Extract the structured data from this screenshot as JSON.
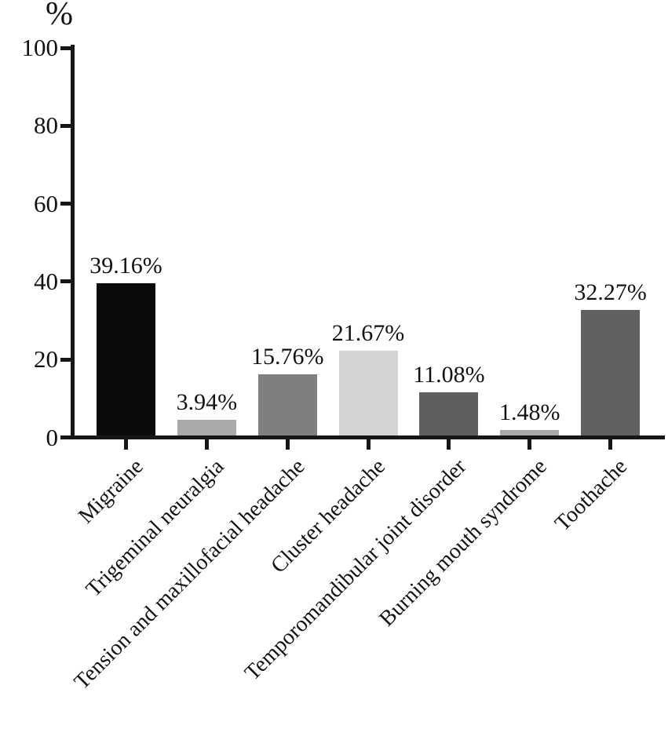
{
  "chart_data": {
    "type": "bar",
    "title": "",
    "xlabel": "",
    "ylabel": "%",
    "categories": [
      "Migraine",
      "Trigeminal neuralgia",
      "Tension and maxillofacial headache",
      "Cluster headache",
      "Temporomandibular joint disorder",
      "Burning mouth syndrome",
      "Toothache"
    ],
    "values": [
      39.16,
      3.94,
      15.76,
      21.67,
      11.08,
      1.48,
      32.27
    ],
    "value_labels": [
      "39.16%",
      "3.94%",
      "15.76%",
      "21.67%",
      "11.08%",
      "1.48%",
      "32.27%"
    ],
    "bar_colors": [
      "#0a0a0a",
      "#a9a9a9",
      "#7f7f7f",
      "#d3d3d3",
      "#5f5f5f",
      "#a9a9a9",
      "#616161"
    ],
    "y_ticks": [
      0,
      20,
      40,
      60,
      80,
      100
    ],
    "ylim": [
      0,
      100
    ],
    "grid": false,
    "legend_position": "none",
    "axis_color": "#161616",
    "background_color": "#ffffff",
    "x_label_rotation_deg": 45
  }
}
